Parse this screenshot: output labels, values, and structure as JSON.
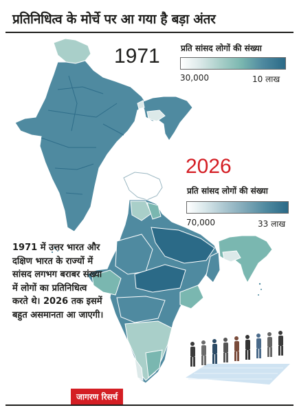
{
  "title": "प्रतिनिधित्व के मोर्चे पर आ गया है बड़ा अंतर",
  "maps": [
    {
      "year": "1971",
      "legend_title": "प्रति सांसद लोगों की संख्या",
      "legend_min_label": "30,000",
      "legend_max_label": "10 लाख"
    },
    {
      "year": "2026",
      "legend_title": "प्रति सांसद लोगों की संख्या",
      "legend_min_label": "70,000",
      "legend_max_label": "33 लाख"
    }
  ],
  "note": "1971 में उत्तर भारत और दक्षिण भारत के राज्यों में सांसद लगभग बराबर संख्या में लोगों का प्रतिनिधित्व करते थे। 2026 तक इसमें बहुत असमानता आ जाएगी।",
  "source": "जागरण रिसर्च",
  "colors": {
    "accent_red": "#d41e24",
    "map_dark": "#2b6a87",
    "map_mid": "#4f8aa0",
    "map_light": "#a9cfc9",
    "map_pale": "#dce9e9"
  }
}
